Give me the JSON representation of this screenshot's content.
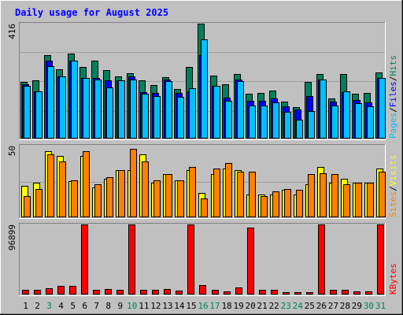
{
  "title": "Daily usage for August 2025",
  "colors": {
    "background": "#c0c0c0",
    "title": "#0000ff",
    "hits": "#00805c",
    "files": "#0000ff",
    "pages": "#00c0ff",
    "visits": "#ffff00",
    "sites": "#ff8000",
    "kbytes": "#ff0000",
    "weekend_label": "#00805c",
    "weekday_label": "#000000"
  },
  "chart_data": [
    {
      "type": "bar",
      "panel": "hits-files-pages",
      "ymax_label": "416",
      "ylim": [
        0,
        416
      ],
      "side_labels": [
        "Pages",
        "/",
        "Files",
        "/",
        "Hits"
      ],
      "categories": [
        "1",
        "2",
        "3",
        "4",
        "5",
        "6",
        "7",
        "8",
        "9",
        "10",
        "11",
        "12",
        "13",
        "14",
        "15",
        "16",
        "17",
        "18",
        "19",
        "20",
        "21",
        "22",
        "23",
        "24",
        "25",
        "26",
        "27",
        "28",
        "29",
        "30",
        "31"
      ],
      "series": [
        {
          "name": "Hits",
          "values": [
            206,
            211,
            301,
            250,
            308,
            258,
            283,
            248,
            224,
            236,
            212,
            193,
            223,
            180,
            258,
            416,
            227,
            198,
            234,
            161,
            165,
            174,
            133,
            115,
            204,
            234,
            144,
            234,
            163,
            166,
            238
          ]
        },
        {
          "name": "Files",
          "values": [
            196,
            171,
            283,
            226,
            283,
            219,
            219,
            210,
            212,
            224,
            169,
            166,
            213,
            165,
            171,
            301,
            191,
            148,
            214,
            138,
            137,
            146,
            118,
            105,
            154,
            215,
            135,
            168,
            139,
            130,
            218
          ]
        },
        {
          "name": "Pages",
          "values": [
            190,
            171,
            262,
            226,
            283,
            219,
            214,
            185,
            212,
            213,
            162,
            153,
            208,
            152,
            183,
            358,
            191,
            136,
            209,
            121,
            119,
            131,
            96,
            67,
            99,
            215,
            121,
            170,
            127,
            117,
            218
          ]
        }
      ]
    },
    {
      "type": "bar",
      "panel": "visits-sites",
      "ymax_label": "50",
      "ylim": [
        0,
        50
      ],
      "side_labels": [
        "Sites",
        "/",
        "Visits"
      ],
      "categories": [
        "1",
        "2",
        "3",
        "4",
        "5",
        "6",
        "7",
        "8",
        "9",
        "10",
        "11",
        "12",
        "13",
        "14",
        "15",
        "16",
        "17",
        "18",
        "19",
        "20",
        "21",
        "22",
        "23",
        "24",
        "25",
        "26",
        "27",
        "28",
        "29",
        "30",
        "31"
      ],
      "series": [
        {
          "name": "Visits",
          "values": [
            22,
            24,
            46,
            43,
            25,
            43,
            21,
            27,
            33,
            33,
            44,
            24,
            30,
            26,
            33,
            17,
            30,
            34,
            33,
            16,
            16,
            16,
            19,
            16,
            23,
            35,
            24,
            27,
            24,
            24,
            34
          ]
        },
        {
          "name": "Sites",
          "values": [
            15,
            20,
            44,
            39,
            26,
            46,
            23,
            28,
            33,
            48,
            39,
            26,
            30,
            26,
            35,
            13,
            34,
            38,
            32,
            32,
            15,
            18,
            20,
            19,
            30,
            31,
            30,
            23,
            24,
            24,
            32
          ]
        }
      ]
    },
    {
      "type": "bar",
      "panel": "kbytes",
      "ymax_label": "96899",
      "ylim": [
        0,
        96899
      ],
      "side_labels": [
        "KBytes"
      ],
      "categories": [
        "1",
        "2",
        "3",
        "4",
        "5",
        "6",
        "7",
        "8",
        "9",
        "10",
        "11",
        "12",
        "13",
        "14",
        "15",
        "16",
        "17",
        "18",
        "19",
        "20",
        "21",
        "22",
        "23",
        "24",
        "25",
        "26",
        "27",
        "28",
        "29",
        "30",
        "31"
      ],
      "series": [
        {
          "name": "KBytes",
          "values": [
            7000,
            6000,
            9000,
            12000,
            12000,
            96899,
            6000,
            8000,
            7000,
            96899,
            7000,
            6000,
            8000,
            5000,
            96899,
            13000,
            7000,
            4000,
            10000,
            92000,
            6000,
            6000,
            3000,
            3000,
            3000,
            96899,
            6000,
            7000,
            4000,
            4000,
            96899
          ]
        }
      ]
    }
  ],
  "weekend_days": [
    "3",
    "10",
    "16",
    "17",
    "23",
    "24",
    "30",
    "31"
  ]
}
